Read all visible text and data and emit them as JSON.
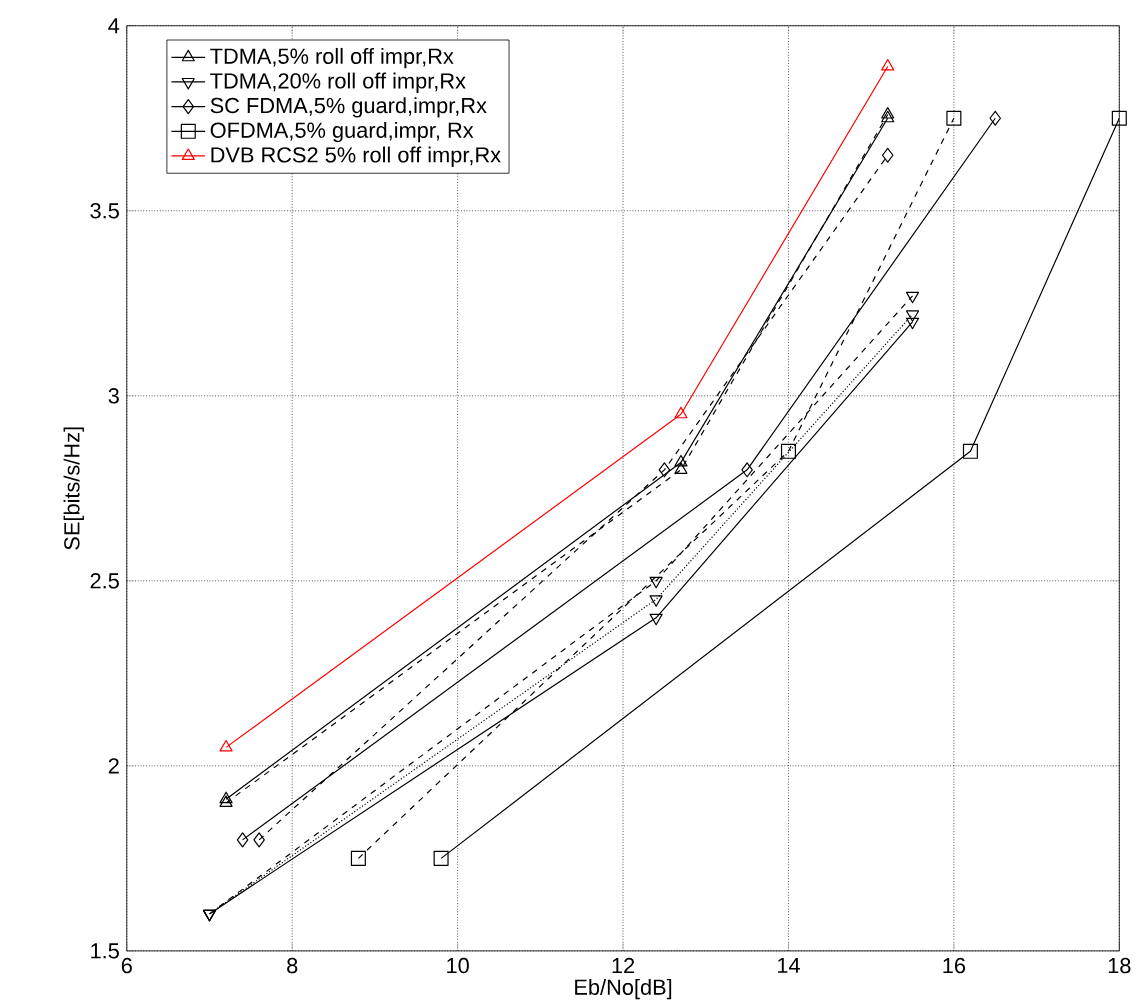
{
  "chart_data": {
    "type": "line",
    "xlabel": "Eb/No[dB]",
    "ylabel": "SE[bits/s/Hz]",
    "xlim": [
      6,
      18
    ],
    "ylim": [
      1.5,
      4
    ],
    "xticks": [
      6,
      8,
      10,
      12,
      14,
      16,
      18
    ],
    "yticks": [
      1.5,
      2,
      2.5,
      3,
      3.5,
      4
    ],
    "grid": true,
    "legend": "top left",
    "series": [
      {
        "name": "TDMA,5% roll off impr,Rx",
        "color": "#000000",
        "marker": "triangle",
        "line_style": "solid",
        "x": [
          7.2,
          12.7,
          15.2
        ],
        "values": [
          1.91,
          2.82,
          3.75
        ]
      },
      {
        "name": "TDMA,20% roll off impr,Rx",
        "color": "#000000",
        "marker": "triangle down",
        "line_style": "solid",
        "x": [
          7.0,
          12.4,
          15.5
        ],
        "values": [
          1.6,
          2.4,
          3.2
        ]
      },
      {
        "name": "SC FDMA,5% guard,impr,Rx",
        "color": "#000000",
        "marker": "diamond",
        "line_style": "solid",
        "x": [
          7.4,
          13.5,
          16.5
        ],
        "values": [
          1.8,
          2.8,
          3.75
        ]
      },
      {
        "name": "OFDMA,5% guard,impr, Rx",
        "color": "#000000",
        "marker": "square",
        "line_style": "solid",
        "x": [
          9.8,
          16.2,
          18.0
        ],
        "values": [
          1.75,
          2.85,
          3.75
        ]
      },
      {
        "name": "DVB RCS2 5% roll off impr,Rx",
        "color": "#ff0000",
        "marker": "triangle",
        "line_style": "solid",
        "x": [
          7.2,
          12.7,
          15.2
        ],
        "values": [
          2.05,
          2.95,
          3.89
        ]
      },
      {
        "color": "#000000",
        "marker": "triangle",
        "line_style": "dashed",
        "x": [
          7.2,
          12.7,
          15.2
        ],
        "values": [
          1.9,
          2.8,
          3.76
        ]
      },
      {
        "color": "#000000",
        "marker": "triangle down",
        "line_style": "dashed",
        "x": [
          7.0,
          12.4,
          15.5
        ],
        "values": [
          1.6,
          2.5,
          3.27
        ]
      },
      {
        "color": "#000000",
        "marker": "triangle down",
        "line_style": "dotted",
        "x": [
          7.0,
          12.4,
          15.5
        ],
        "values": [
          1.6,
          2.45,
          3.22
        ]
      },
      {
        "color": "#000000",
        "marker": "diamond",
        "line_style": "dashed",
        "x": [
          7.6,
          12.5,
          15.2
        ],
        "values": [
          1.8,
          2.8,
          3.65
        ]
      },
      {
        "color": "#000000",
        "marker": "square",
        "line_style": "dashed",
        "x": [
          8.8,
          14.0,
          16.0
        ],
        "values": [
          1.75,
          2.85,
          3.75
        ]
      }
    ]
  }
}
